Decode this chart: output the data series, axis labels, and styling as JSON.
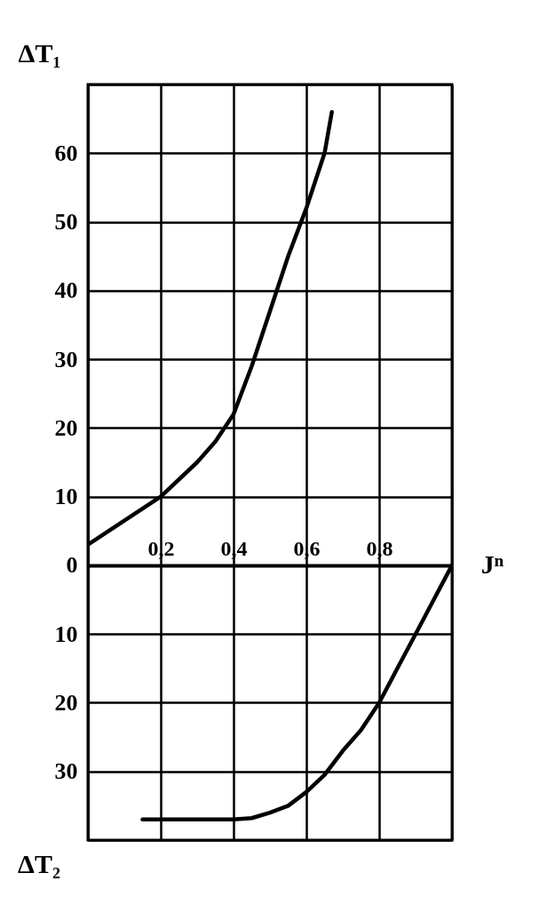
{
  "chart_data": {
    "type": "line",
    "xlabel": "Jⁿ",
    "ylabel": "ΔT₁",
    "annotations": [
      "ΔT₂"
    ],
    "xlim": [
      0,
      1
    ],
    "xticks": [
      {
        "value": 0,
        "label": null
      },
      {
        "value": 0.2,
        "label": "0,2"
      },
      {
        "value": 0.4,
        "label": "0,4"
      },
      {
        "value": 0.6,
        "label": "0,6"
      },
      {
        "value": 0.8,
        "label": "0,8"
      },
      {
        "value": 1,
        "label": null
      }
    ],
    "ylim": [
      -40,
      70
    ],
    "yticks": [
      {
        "value": -40,
        "label": null
      },
      {
        "value": -30,
        "label": "30"
      },
      {
        "value": -20,
        "label": "20"
      },
      {
        "value": -10,
        "label": "10"
      },
      0,
      10,
      20,
      30,
      40,
      50,
      60,
      {
        "value": 70,
        "label": null
      }
    ],
    "grid": true,
    "line_style": "solid",
    "marker": "none",
    "series": [
      {
        "color": "#000000",
        "x": [
          0,
          0.1,
          0.2,
          0.3,
          0.35,
          0.4,
          0.45,
          0.5,
          0.55,
          0.6,
          0.65,
          0.67
        ],
        "values": [
          3,
          6.5,
          10,
          15,
          18,
          22,
          29,
          37,
          45,
          52,
          60,
          66
        ]
      },
      {
        "color": "#000000",
        "x": [
          0.15,
          0.3,
          0.4,
          0.45,
          0.5,
          0.55,
          0.6,
          0.65,
          0.7,
          0.75,
          0.8,
          0.85,
          0.9,
          0.95,
          1
        ],
        "values": [
          -37,
          -37,
          -37,
          -36.8,
          -36,
          -35,
          -33,
          -30.5,
          -27,
          -24,
          -20,
          -15,
          -10,
          -5,
          0
        ]
      }
    ]
  }
}
